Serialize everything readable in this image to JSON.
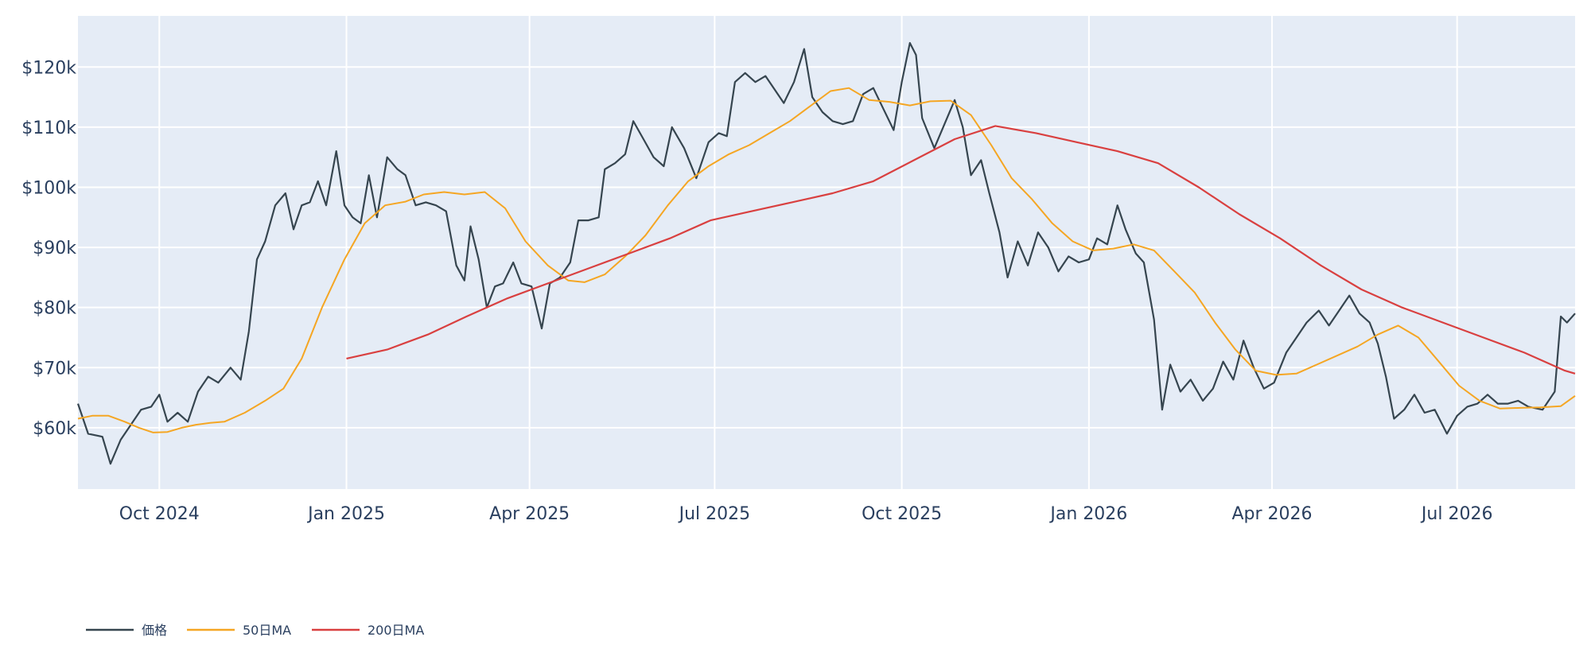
{
  "chart_data": {
    "type": "line",
    "x_axis": {
      "type": "date",
      "range": [
        "2024-08-22",
        "2026-08-28"
      ],
      "tick_dates": [
        "2024-10-01",
        "2025-01-01",
        "2025-04-01",
        "2025-07-01",
        "2025-10-01",
        "2026-01-01",
        "2026-04-01",
        "2026-07-01"
      ],
      "tick_labels": [
        "Oct 2024",
        "Jan 2025",
        "Apr 2025",
        "Jul 2025",
        "Oct 2025",
        "Jan 2026",
        "Apr 2026",
        "Jul 2026"
      ]
    },
    "y_axis": {
      "range": [
        49800,
        128500
      ],
      "tick_values": [
        60000,
        70000,
        80000,
        90000,
        100000,
        110000,
        120000
      ],
      "tick_labels": [
        "$60k",
        "$70k",
        "$80k",
        "$90k",
        "$100k",
        "$110k",
        "$120k"
      ]
    },
    "grid": true,
    "legend_position": "bottom-left",
    "colors": {
      "plot_bg": "#e5ecf6",
      "grid": "#ffffff",
      "text": "#2a3f5f"
    },
    "series": [
      {
        "name": "価格",
        "color": "#36454f",
        "points": [
          [
            "2024-08-22",
            64000
          ],
          [
            "2024-08-27",
            59000
          ],
          [
            "2024-09-03",
            58500
          ],
          [
            "2024-09-07",
            54000
          ],
          [
            "2024-09-12",
            58000
          ],
          [
            "2024-09-17",
            60500
          ],
          [
            "2024-09-22",
            63000
          ],
          [
            "2024-09-27",
            63500
          ],
          [
            "2024-10-01",
            65500
          ],
          [
            "2024-10-05",
            61000
          ],
          [
            "2024-10-10",
            62500
          ],
          [
            "2024-10-15",
            61000
          ],
          [
            "2024-10-20",
            66000
          ],
          [
            "2024-10-25",
            68500
          ],
          [
            "2024-10-30",
            67500
          ],
          [
            "2024-11-05",
            70000
          ],
          [
            "2024-11-10",
            68000
          ],
          [
            "2024-11-14",
            76000
          ],
          [
            "2024-11-18",
            88000
          ],
          [
            "2024-11-22",
            91000
          ],
          [
            "2024-11-27",
            97000
          ],
          [
            "2024-12-02",
            99000
          ],
          [
            "2024-12-06",
            93000
          ],
          [
            "2024-12-10",
            97000
          ],
          [
            "2024-12-14",
            97500
          ],
          [
            "2024-12-18",
            101000
          ],
          [
            "2024-12-22",
            97000
          ],
          [
            "2024-12-27",
            106000
          ],
          [
            "2024-12-31",
            97000
          ],
          [
            "2025-01-04",
            95000
          ],
          [
            "2025-01-08",
            94000
          ],
          [
            "2025-01-12",
            102000
          ],
          [
            "2025-01-16",
            95000
          ],
          [
            "2025-01-21",
            105000
          ],
          [
            "2025-01-26",
            103000
          ],
          [
            "2025-01-30",
            102000
          ],
          [
            "2025-02-04",
            97000
          ],
          [
            "2025-02-09",
            97500
          ],
          [
            "2025-02-14",
            97000
          ],
          [
            "2025-02-19",
            96000
          ],
          [
            "2025-02-24",
            87000
          ],
          [
            "2025-02-28",
            84500
          ],
          [
            "2025-03-03",
            93500
          ],
          [
            "2025-03-07",
            88000
          ],
          [
            "2025-03-11",
            80000
          ],
          [
            "2025-03-15",
            83500
          ],
          [
            "2025-03-19",
            84000
          ],
          [
            "2025-03-24",
            87500
          ],
          [
            "2025-03-28",
            84000
          ],
          [
            "2025-04-02",
            83500
          ],
          [
            "2025-04-07",
            76500
          ],
          [
            "2025-04-11",
            84000
          ],
          [
            "2025-04-16",
            85000
          ],
          [
            "2025-04-21",
            87500
          ],
          [
            "2025-04-25",
            94500
          ],
          [
            "2025-04-30",
            94500
          ],
          [
            "2025-05-05",
            95000
          ],
          [
            "2025-05-08",
            103000
          ],
          [
            "2025-05-13",
            104000
          ],
          [
            "2025-05-18",
            105500
          ],
          [
            "2025-05-22",
            111000
          ],
          [
            "2025-05-27",
            108000
          ],
          [
            "2025-06-01",
            105000
          ],
          [
            "2025-06-06",
            103500
          ],
          [
            "2025-06-10",
            110000
          ],
          [
            "2025-06-16",
            106500
          ],
          [
            "2025-06-22",
            101500
          ],
          [
            "2025-06-28",
            107500
          ],
          [
            "2025-07-03",
            109000
          ],
          [
            "2025-07-07",
            108500
          ],
          [
            "2025-07-11",
            117500
          ],
          [
            "2025-07-16",
            119000
          ],
          [
            "2025-07-21",
            117500
          ],
          [
            "2025-07-26",
            118500
          ],
          [
            "2025-07-31",
            116000
          ],
          [
            "2025-08-04",
            114000
          ],
          [
            "2025-08-09",
            117500
          ],
          [
            "2025-08-14",
            123000
          ],
          [
            "2025-08-18",
            115000
          ],
          [
            "2025-08-23",
            112500
          ],
          [
            "2025-08-28",
            111000
          ],
          [
            "2025-09-02",
            110500
          ],
          [
            "2025-09-07",
            111000
          ],
          [
            "2025-09-12",
            115500
          ],
          [
            "2025-09-17",
            116500
          ],
          [
            "2025-09-22",
            113000
          ],
          [
            "2025-09-27",
            109500
          ],
          [
            "2025-10-01",
            117500
          ],
          [
            "2025-10-05",
            124000
          ],
          [
            "2025-10-08",
            122000
          ],
          [
            "2025-10-11",
            111500
          ],
          [
            "2025-10-17",
            106500
          ],
          [
            "2025-10-22",
            110500
          ],
          [
            "2025-10-27",
            114500
          ],
          [
            "2025-10-31",
            110000
          ],
          [
            "2025-11-04",
            102000
          ],
          [
            "2025-11-09",
            104500
          ],
          [
            "2025-11-13",
            99000
          ],
          [
            "2025-11-18",
            92500
          ],
          [
            "2025-11-22",
            85000
          ],
          [
            "2025-11-27",
            91000
          ],
          [
            "2025-12-02",
            87000
          ],
          [
            "2025-12-07",
            92500
          ],
          [
            "2025-12-12",
            90000
          ],
          [
            "2025-12-17",
            86000
          ],
          [
            "2025-12-22",
            88500
          ],
          [
            "2025-12-27",
            87500
          ],
          [
            "2026-01-01",
            88000
          ],
          [
            "2026-01-05",
            91500
          ],
          [
            "2026-01-10",
            90500
          ],
          [
            "2026-01-15",
            97000
          ],
          [
            "2026-01-19",
            93000
          ],
          [
            "2026-01-24",
            89000
          ],
          [
            "2026-01-28",
            87500
          ],
          [
            "2026-02-02",
            78000
          ],
          [
            "2026-02-06",
            63000
          ],
          [
            "2026-02-10",
            70500
          ],
          [
            "2026-02-15",
            66000
          ],
          [
            "2026-02-20",
            68000
          ],
          [
            "2026-02-26",
            64500
          ],
          [
            "2026-03-03",
            66500
          ],
          [
            "2026-03-08",
            71000
          ],
          [
            "2026-03-13",
            68000
          ],
          [
            "2026-03-18",
            74500
          ],
          [
            "2026-03-23",
            70000
          ],
          [
            "2026-03-28",
            66500
          ],
          [
            "2026-04-02",
            67500
          ],
          [
            "2026-04-08",
            72500
          ],
          [
            "2026-04-13",
            75000
          ],
          [
            "2026-04-18",
            77500
          ],
          [
            "2026-04-24",
            79500
          ],
          [
            "2026-04-29",
            77000
          ],
          [
            "2026-05-04",
            79500
          ],
          [
            "2026-05-09",
            82000
          ],
          [
            "2026-05-14",
            79000
          ],
          [
            "2026-05-19",
            77500
          ],
          [
            "2026-05-23",
            74000
          ],
          [
            "2026-05-27",
            68500
          ],
          [
            "2026-05-31",
            61500
          ],
          [
            "2026-06-05",
            63000
          ],
          [
            "2026-06-10",
            65500
          ],
          [
            "2026-06-15",
            62500
          ],
          [
            "2026-06-20",
            63000
          ],
          [
            "2026-06-26",
            59000
          ],
          [
            "2026-07-01",
            62000
          ],
          [
            "2026-07-06",
            63500
          ],
          [
            "2026-07-11",
            64000
          ],
          [
            "2026-07-16",
            65500
          ],
          [
            "2026-07-21",
            64000
          ],
          [
            "2026-07-26",
            64000
          ],
          [
            "2026-07-31",
            64500
          ],
          [
            "2026-08-05",
            63500
          ],
          [
            "2026-08-12",
            63000
          ],
          [
            "2026-08-18",
            66000
          ],
          [
            "2026-08-21",
            78500
          ],
          [
            "2026-08-24",
            77500
          ],
          [
            "2026-08-28",
            79000
          ]
        ]
      },
      {
        "name": "50日MA",
        "color": "#f5a623",
        "points": [
          [
            "2024-08-22",
            61500
          ],
          [
            "2024-08-29",
            62000
          ],
          [
            "2024-09-06",
            62000
          ],
          [
            "2024-09-14",
            61000
          ],
          [
            "2024-09-21",
            60000
          ],
          [
            "2024-09-28",
            59200
          ],
          [
            "2024-10-05",
            59300
          ],
          [
            "2024-10-12",
            60000
          ],
          [
            "2024-10-19",
            60500
          ],
          [
            "2024-10-26",
            60800
          ],
          [
            "2024-11-02",
            61000
          ],
          [
            "2024-11-12",
            62500
          ],
          [
            "2024-11-22",
            64500
          ],
          [
            "2024-12-01",
            66500
          ],
          [
            "2024-12-10",
            71500
          ],
          [
            "2024-12-20",
            80000
          ],
          [
            "2024-12-31",
            88000
          ],
          [
            "2025-01-10",
            94000
          ],
          [
            "2025-01-20",
            97000
          ],
          [
            "2025-01-30",
            97600
          ],
          [
            "2025-02-08",
            98800
          ],
          [
            "2025-02-18",
            99200
          ],
          [
            "2025-02-28",
            98800
          ],
          [
            "2025-03-10",
            99200
          ],
          [
            "2025-03-20",
            96500
          ],
          [
            "2025-03-30",
            91000
          ],
          [
            "2025-04-10",
            87000
          ],
          [
            "2025-04-20",
            84500
          ],
          [
            "2025-04-28",
            84200
          ],
          [
            "2025-05-08",
            85500
          ],
          [
            "2025-05-18",
            88500
          ],
          [
            "2025-05-28",
            92000
          ],
          [
            "2025-06-08",
            97000
          ],
          [
            "2025-06-18",
            101000
          ],
          [
            "2025-06-28",
            103500
          ],
          [
            "2025-07-08",
            105500
          ],
          [
            "2025-07-18",
            107000
          ],
          [
            "2025-07-28",
            109000
          ],
          [
            "2025-08-07",
            111000
          ],
          [
            "2025-08-17",
            113500
          ],
          [
            "2025-08-27",
            116000
          ],
          [
            "2025-09-05",
            116500
          ],
          [
            "2025-09-15",
            114500
          ],
          [
            "2025-09-25",
            114200
          ],
          [
            "2025-10-05",
            113600
          ],
          [
            "2025-10-15",
            114300
          ],
          [
            "2025-10-25",
            114400
          ],
          [
            "2025-11-04",
            112000
          ],
          [
            "2025-11-14",
            107000
          ],
          [
            "2025-11-24",
            101500
          ],
          [
            "2025-12-04",
            98000
          ],
          [
            "2025-12-14",
            94000
          ],
          [
            "2025-12-24",
            91000
          ],
          [
            "2026-01-03",
            89500
          ],
          [
            "2026-01-13",
            89800
          ],
          [
            "2026-01-23",
            90500
          ],
          [
            "2026-02-02",
            89500
          ],
          [
            "2026-02-12",
            86000
          ],
          [
            "2026-02-22",
            82500
          ],
          [
            "2026-03-04",
            77500
          ],
          [
            "2026-03-14",
            73000
          ],
          [
            "2026-03-24",
            69500
          ],
          [
            "2026-04-03",
            68800
          ],
          [
            "2026-04-13",
            69000
          ],
          [
            "2026-04-23",
            70500
          ],
          [
            "2026-05-03",
            72000
          ],
          [
            "2026-05-13",
            73500
          ],
          [
            "2026-05-23",
            75500
          ],
          [
            "2026-06-02",
            77000
          ],
          [
            "2026-06-12",
            75000
          ],
          [
            "2026-06-22",
            71000
          ],
          [
            "2026-07-02",
            67000
          ],
          [
            "2026-07-12",
            64500
          ],
          [
            "2026-07-22",
            63200
          ],
          [
            "2026-08-01",
            63300
          ],
          [
            "2026-08-11",
            63400
          ],
          [
            "2026-08-21",
            63600
          ],
          [
            "2026-08-28",
            65300
          ]
        ]
      },
      {
        "name": "200日MA",
        "color": "#d94040",
        "points": [
          [
            "2025-01-01",
            71500
          ],
          [
            "2025-01-21",
            73000
          ],
          [
            "2025-02-10",
            75500
          ],
          [
            "2025-03-01",
            78500
          ],
          [
            "2025-03-21",
            81500
          ],
          [
            "2025-04-10",
            84000
          ],
          [
            "2025-04-30",
            86500
          ],
          [
            "2025-05-20",
            89000
          ],
          [
            "2025-06-09",
            91500
          ],
          [
            "2025-06-29",
            94500
          ],
          [
            "2025-07-19",
            96000
          ],
          [
            "2025-08-08",
            97500
          ],
          [
            "2025-08-28",
            99000
          ],
          [
            "2025-09-17",
            101000
          ],
          [
            "2025-10-07",
            104500
          ],
          [
            "2025-10-27",
            108000
          ],
          [
            "2025-11-16",
            110200
          ],
          [
            "2025-12-06",
            109000
          ],
          [
            "2025-12-26",
            107500
          ],
          [
            "2026-01-15",
            106000
          ],
          [
            "2026-02-04",
            104000
          ],
          [
            "2026-02-24",
            100000
          ],
          [
            "2026-03-16",
            95500
          ],
          [
            "2026-04-05",
            91500
          ],
          [
            "2026-04-25",
            87000
          ],
          [
            "2026-05-15",
            83000
          ],
          [
            "2026-06-04",
            80000
          ],
          [
            "2026-06-24",
            77500
          ],
          [
            "2026-07-14",
            75000
          ],
          [
            "2026-08-03",
            72500
          ],
          [
            "2026-08-23",
            69500
          ],
          [
            "2026-08-28",
            69000
          ]
        ]
      }
    ]
  }
}
